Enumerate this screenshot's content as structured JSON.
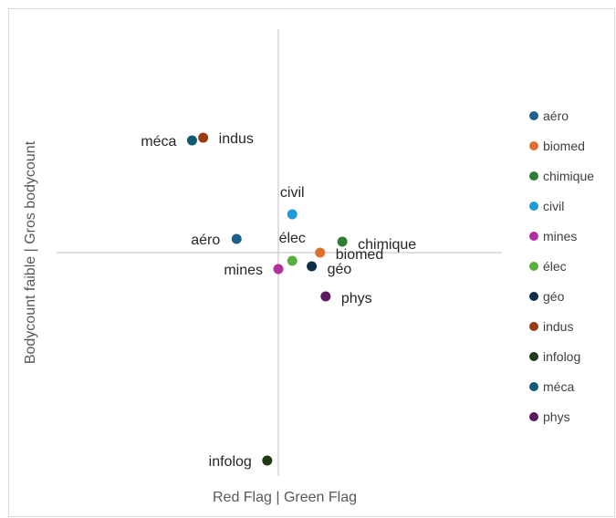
{
  "chart_data": {
    "type": "scatter",
    "xlabel": "Red Flag | Green Flag",
    "ylabel": "Bodycount faible | Gros bodycount",
    "xlim": [
      -4,
      4
    ],
    "ylim": [
      -4,
      4
    ],
    "grid": false,
    "legend_position": "right",
    "points": [
      {
        "label": "aéro",
        "x": -1.5,
        "y": 0.25,
        "color": "#1f5f8b"
      },
      {
        "label": "biomed",
        "x": 1.5,
        "y": 0.0,
        "color": "#e07030"
      },
      {
        "label": "chimique",
        "x": 2.3,
        "y": 0.2,
        "color": "#2e7d32"
      },
      {
        "label": "civil",
        "x": 0.5,
        "y": 0.7,
        "color": "#1e9bd7"
      },
      {
        "label": "mines",
        "x": 0.0,
        "y": -0.3,
        "color": "#b0309e"
      },
      {
        "label": "élec",
        "x": 0.5,
        "y": -0.15,
        "color": "#5aae3e"
      },
      {
        "label": "géo",
        "x": 1.2,
        "y": -0.25,
        "color": "#0f2f4a"
      },
      {
        "label": "indus",
        "x": -2.7,
        "y": 2.1,
        "color": "#9a3b12"
      },
      {
        "label": "infolog",
        "x": -0.4,
        "y": -3.8,
        "color": "#1e3a14"
      },
      {
        "label": "méca",
        "x": -3.1,
        "y": 2.05,
        "color": "#105a78"
      },
      {
        "label": "phys",
        "x": 1.7,
        "y": -0.8,
        "color": "#5a1a5e"
      }
    ]
  }
}
